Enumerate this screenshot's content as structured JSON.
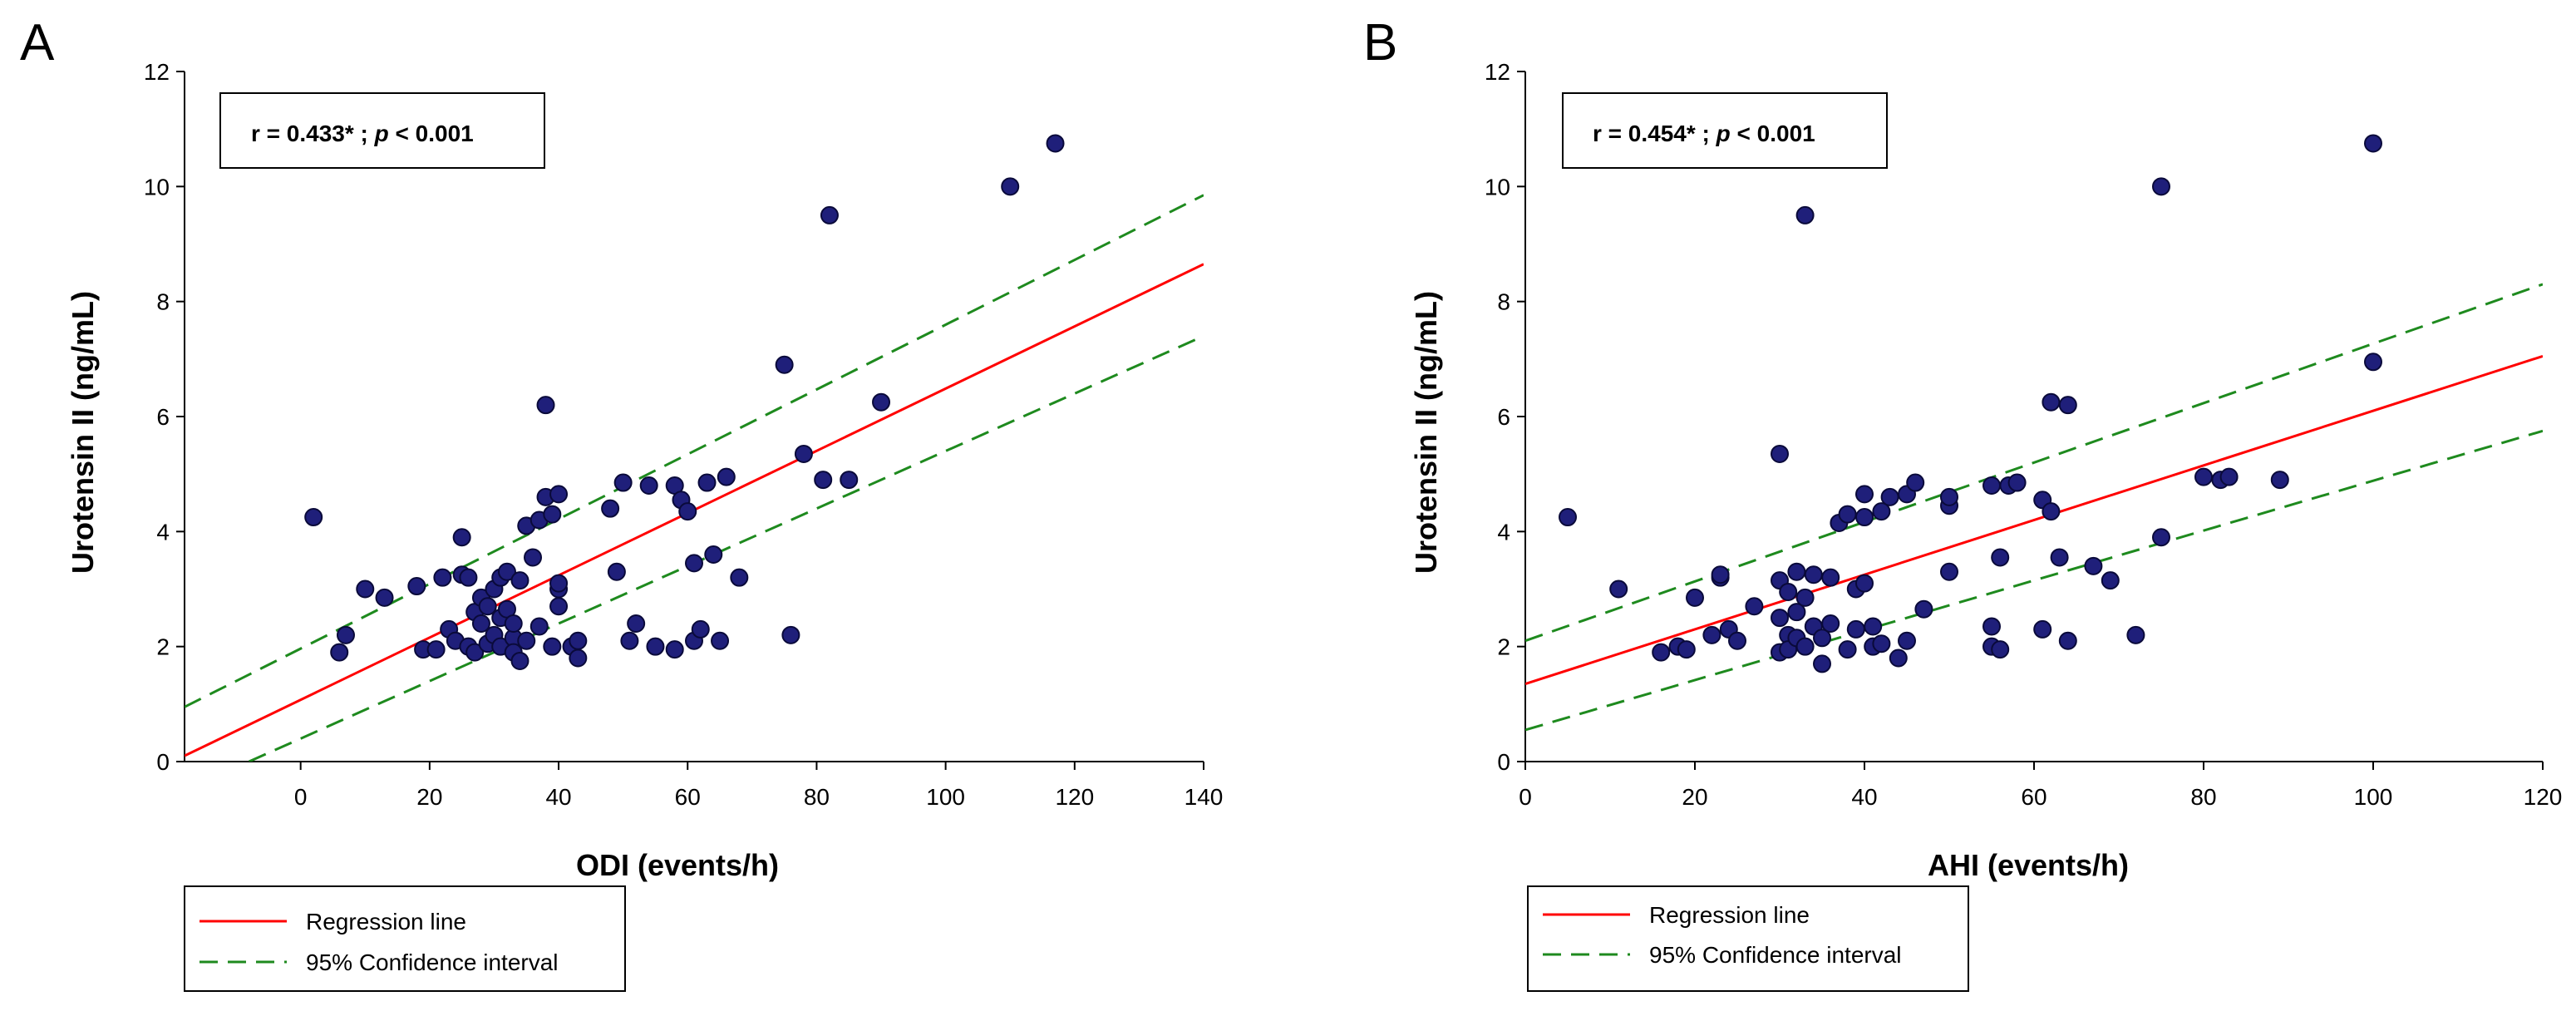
{
  "colors": {
    "regression": "#ff0000",
    "ci": "#1e8a1e",
    "point_fill": "#1f1f7a",
    "point_stroke": "#0a0a3a",
    "axis": "#000000"
  },
  "legend": {
    "regression_label": "Regression line",
    "ci_label": "95% Confidence interval"
  },
  "chart_data": [
    {
      "panel": "A",
      "type": "scatter",
      "xlabel": "ODI (events/h)",
      "ylabel": "Urotensin II (ng/mL)",
      "stat_r": "r = 0.433* ;",
      "stat_p_symbol": "p",
      "stat_p_value": "< 0.001",
      "xlim": [
        -18,
        140
      ],
      "ylim": [
        0,
        12
      ],
      "xticks": [
        0,
        20,
        40,
        60,
        80,
        100,
        120,
        140
      ],
      "yticks": [
        0,
        2,
        4,
        6,
        8,
        10,
        12
      ],
      "regression": [
        [
          -18,
          0.1
        ],
        [
          140,
          8.65
        ]
      ],
      "ci_upper": [
        [
          -18,
          0.95
        ],
        [
          140,
          9.85
        ]
      ],
      "ci_lower": [
        [
          -8,
          0
        ],
        [
          140,
          7.4
        ]
      ],
      "points": [
        [
          2,
          4.25
        ],
        [
          6,
          1.9
        ],
        [
          7,
          2.2
        ],
        [
          10,
          3.0
        ],
        [
          13,
          2.85
        ],
        [
          18,
          3.05
        ],
        [
          19,
          1.95
        ],
        [
          21,
          1.95
        ],
        [
          22,
          3.2
        ],
        [
          23,
          2.3
        ],
        [
          24,
          2.1
        ],
        [
          25,
          3.25
        ],
        [
          25,
          3.9
        ],
        [
          26,
          2.0
        ],
        [
          26,
          3.2
        ],
        [
          27,
          2.6
        ],
        [
          27,
          1.9
        ],
        [
          28,
          2.85
        ],
        [
          28,
          2.4
        ],
        [
          29,
          2.05
        ],
        [
          29,
          2.7
        ],
        [
          30,
          3.0
        ],
        [
          30,
          2.2
        ],
        [
          31,
          2.5
        ],
        [
          31,
          3.2
        ],
        [
          31,
          2.0
        ],
        [
          32,
          3.3
        ],
        [
          32,
          2.65
        ],
        [
          33,
          2.15
        ],
        [
          33,
          1.9
        ],
        [
          33,
          2.4
        ],
        [
          34,
          3.15
        ],
        [
          34,
          1.75
        ],
        [
          35,
          2.1
        ],
        [
          35,
          4.1
        ],
        [
          36,
          3.55
        ],
        [
          37,
          2.35
        ],
        [
          37,
          4.2
        ],
        [
          38,
          4.6
        ],
        [
          38,
          6.2
        ],
        [
          39,
          4.3
        ],
        [
          39,
          2.0
        ],
        [
          40,
          3.0
        ],
        [
          40,
          2.7
        ],
        [
          40,
          4.65
        ],
        [
          40,
          3.1
        ],
        [
          42,
          2.0
        ],
        [
          43,
          2.1
        ],
        [
          43,
          1.8
        ],
        [
          48,
          4.4
        ],
        [
          49,
          3.3
        ],
        [
          50,
          4.85
        ],
        [
          51,
          2.1
        ],
        [
          52,
          2.4
        ],
        [
          54,
          4.8
        ],
        [
          55,
          2.0
        ],
        [
          58,
          1.95
        ],
        [
          58,
          4.8
        ],
        [
          59,
          4.55
        ],
        [
          60,
          4.35
        ],
        [
          61,
          3.45
        ],
        [
          61,
          2.1
        ],
        [
          62,
          2.3
        ],
        [
          63,
          4.85
        ],
        [
          64,
          3.6
        ],
        [
          65,
          2.1
        ],
        [
          66,
          4.95
        ],
        [
          68,
          3.2
        ],
        [
          75,
          6.9
        ],
        [
          76,
          2.2
        ],
        [
          78,
          5.35
        ],
        [
          81,
          4.9
        ],
        [
          82,
          9.5
        ],
        [
          85,
          4.9
        ],
        [
          90,
          6.25
        ],
        [
          110,
          10.0
        ],
        [
          117,
          10.75
        ]
      ]
    },
    {
      "panel": "B",
      "type": "scatter",
      "xlabel": "AHI (events/h)",
      "ylabel": "Urotensin II (ng/mL)",
      "stat_r": "r = 0.454* ;",
      "stat_p_symbol": "p",
      "stat_p_value": "< 0.001",
      "xlim": [
        0,
        120
      ],
      "ylim": [
        0,
        12
      ],
      "xticks": [
        0,
        20,
        40,
        60,
        80,
        100,
        120
      ],
      "yticks": [
        0,
        2,
        4,
        6,
        8,
        10,
        12
      ],
      "regression": [
        [
          0,
          1.35
        ],
        [
          120,
          7.05
        ]
      ],
      "ci_upper": [
        [
          0,
          2.1
        ],
        [
          120,
          8.3
        ]
      ],
      "ci_lower": [
        [
          0,
          0.55
        ],
        [
          120,
          5.75
        ]
      ],
      "points": [
        [
          5,
          4.25
        ],
        [
          11,
          3.0
        ],
        [
          16,
          1.9
        ],
        [
          18,
          2.0
        ],
        [
          19,
          1.95
        ],
        [
          20,
          2.85
        ],
        [
          22,
          2.2
        ],
        [
          23,
          3.2
        ],
        [
          23,
          3.25
        ],
        [
          24,
          2.3
        ],
        [
          25,
          2.1
        ],
        [
          27,
          2.7
        ],
        [
          30,
          5.35
        ],
        [
          30,
          3.15
        ],
        [
          30,
          2.5
        ],
        [
          30,
          1.9
        ],
        [
          31,
          2.2
        ],
        [
          31,
          2.95
        ],
        [
          31,
          1.95
        ],
        [
          32,
          2.6
        ],
        [
          32,
          3.3
        ],
        [
          32,
          2.15
        ],
        [
          33,
          9.5
        ],
        [
          33,
          2.0
        ],
        [
          33,
          2.85
        ],
        [
          34,
          3.25
        ],
        [
          34,
          2.35
        ],
        [
          35,
          1.7
        ],
        [
          35,
          2.15
        ],
        [
          36,
          2.4
        ],
        [
          36,
          3.2
        ],
        [
          37,
          4.15
        ],
        [
          38,
          4.3
        ],
        [
          38,
          1.95
        ],
        [
          39,
          2.3
        ],
        [
          39,
          3.0
        ],
        [
          40,
          4.65
        ],
        [
          40,
          4.25
        ],
        [
          40,
          3.1
        ],
        [
          41,
          2.35
        ],
        [
          41,
          2.0
        ],
        [
          42,
          2.05
        ],
        [
          42,
          4.35
        ],
        [
          43,
          4.6
        ],
        [
          44,
          1.8
        ],
        [
          45,
          4.65
        ],
        [
          45,
          2.1
        ],
        [
          46,
          4.85
        ],
        [
          47,
          2.65
        ],
        [
          50,
          4.45
        ],
        [
          50,
          4.6
        ],
        [
          50,
          3.3
        ],
        [
          55,
          4.8
        ],
        [
          55,
          2.35
        ],
        [
          55,
          2.0
        ],
        [
          56,
          1.95
        ],
        [
          56,
          3.55
        ],
        [
          57,
          4.8
        ],
        [
          58,
          4.85
        ],
        [
          61,
          4.55
        ],
        [
          61,
          2.3
        ],
        [
          62,
          4.35
        ],
        [
          62,
          6.25
        ],
        [
          63,
          3.55
        ],
        [
          64,
          6.2
        ],
        [
          64,
          2.1
        ],
        [
          67,
          3.4
        ],
        [
          69,
          3.15
        ],
        [
          72,
          2.2
        ],
        [
          75,
          3.9
        ],
        [
          75,
          10.0
        ],
        [
          80,
          4.95
        ],
        [
          82,
          4.9
        ],
        [
          83,
          4.95
        ],
        [
          89,
          4.9
        ],
        [
          100,
          6.95
        ],
        [
          100,
          10.75
        ]
      ]
    }
  ]
}
